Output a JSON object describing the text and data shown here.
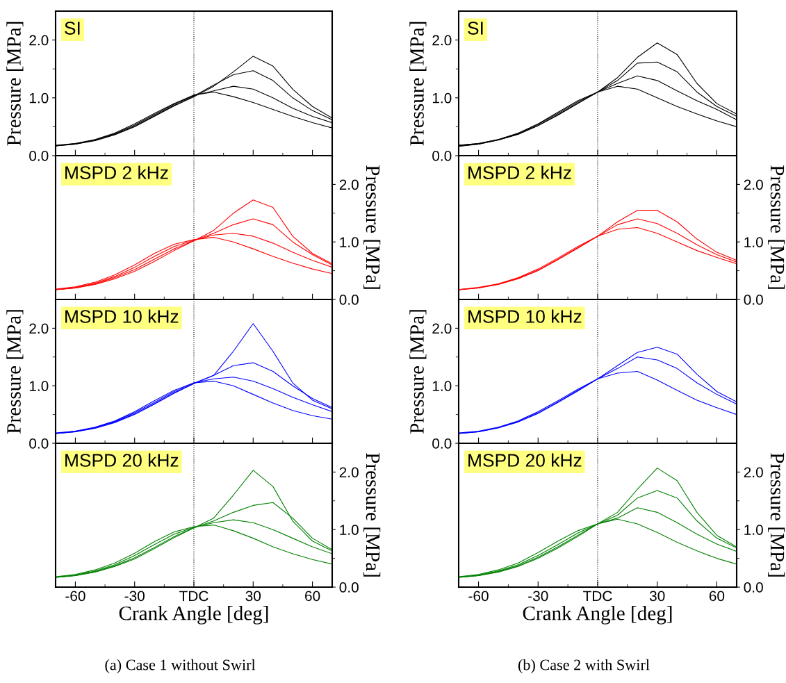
{
  "chart_data": [
    {
      "type": "line",
      "title": "SI",
      "ylabel": "Pressure [MPa]",
      "tick_labels": "y",
      "x": [
        -70,
        -60,
        -50,
        -40,
        -30,
        -20,
        -10,
        0,
        10,
        20,
        30,
        40,
        50,
        60,
        70
      ],
      "xlim": [
        -70,
        70
      ],
      "xticks": [
        {
          "value": -60,
          "label": null
        },
        {
          "value": -45,
          "label": null
        },
        {
          "value": -30,
          "label": null
        },
        {
          "value": -15,
          "label": null
        },
        {
          "value": 0,
          "label": null
        },
        {
          "value": 15,
          "label": null
        },
        {
          "value": 30,
          "label": null
        },
        {
          "value": 45,
          "label": null
        },
        {
          "value": 60,
          "label": null
        }
      ],
      "ylim": [
        0,
        2.5
      ],
      "yticks": [
        {
          "value": 0,
          "label": "0.0"
        },
        {
          "value": 0.5,
          "label": null
        },
        {
          "value": 1,
          "label": "1.0"
        },
        {
          "value": 1.5,
          "label": null
        },
        {
          "value": 2,
          "label": "2.0"
        }
      ],
      "ref_lines": [
        {
          "axis": "x",
          "value": 0,
          "color": "#000000",
          "line_style": "dotted"
        }
      ],
      "series": [
        {
          "color": "#000000",
          "values": [
            0.17,
            0.2,
            0.26,
            0.36,
            0.5,
            0.68,
            0.86,
            1.02,
            1.2,
            1.45,
            1.72,
            1.55,
            1.15,
            0.85,
            0.65
          ]
        },
        {
          "color": "#000000",
          "values": [
            0.17,
            0.2,
            0.27,
            0.37,
            0.51,
            0.69,
            0.87,
            1.03,
            1.22,
            1.4,
            1.47,
            1.3,
            1.0,
            0.78,
            0.62
          ]
        },
        {
          "color": "#000000",
          "values": [
            0.17,
            0.21,
            0.27,
            0.38,
            0.53,
            0.71,
            0.89,
            1.04,
            1.12,
            1.2,
            1.15,
            1.0,
            0.82,
            0.68,
            0.57
          ]
        },
        {
          "color": "#000000",
          "values": [
            0.18,
            0.21,
            0.28,
            0.39,
            0.55,
            0.73,
            0.9,
            1.05,
            1.1,
            1.02,
            0.92,
            0.8,
            0.68,
            0.57,
            0.48
          ]
        }
      ]
    },
    {
      "type": "line",
      "title": "MSPD 2 kHz",
      "y2label": "Pressure [MPa]",
      "tick_labels": "y",
      "x": [
        -70,
        -60,
        -50,
        -40,
        -30,
        -20,
        -10,
        0,
        10,
        20,
        30,
        40,
        50,
        60,
        70
      ],
      "xlim": [
        -70,
        70
      ],
      "xticks": [
        {
          "value": -60,
          "label": null
        },
        {
          "value": -45,
          "label": null
        },
        {
          "value": -30,
          "label": null
        },
        {
          "value": -15,
          "label": null
        },
        {
          "value": 0,
          "label": null
        },
        {
          "value": 15,
          "label": null
        },
        {
          "value": 30,
          "label": null
        },
        {
          "value": 45,
          "label": null
        },
        {
          "value": 60,
          "label": null
        }
      ],
      "y2lim": [
        0,
        2.5
      ],
      "y2ticks": [
        {
          "value": 0,
          "label": "0.0"
        },
        {
          "value": 0.5,
          "label": null
        },
        {
          "value": 1,
          "label": "1.0"
        },
        {
          "value": 1.5,
          "label": null
        },
        {
          "value": 2,
          "label": "2.0"
        }
      ],
      "ref_lines": [
        {
          "axis": "x",
          "value": 0,
          "color": "#000000",
          "line_style": "dotted"
        }
      ],
      "series": [
        {
          "axis": "y2",
          "color": "#ff0000",
          "values": [
            0.17,
            0.2,
            0.26,
            0.36,
            0.49,
            0.66,
            0.85,
            1.02,
            1.2,
            1.5,
            1.73,
            1.6,
            1.1,
            0.8,
            0.62
          ]
        },
        {
          "axis": "y2",
          "color": "#ff0000",
          "values": [
            0.17,
            0.2,
            0.27,
            0.38,
            0.52,
            0.7,
            0.88,
            1.02,
            1.15,
            1.3,
            1.4,
            1.3,
            1.0,
            0.78,
            0.6
          ]
        },
        {
          "axis": "y2",
          "color": "#ff0000",
          "values": [
            0.17,
            0.21,
            0.28,
            0.4,
            0.56,
            0.75,
            0.92,
            1.03,
            1.12,
            1.15,
            1.1,
            0.98,
            0.82,
            0.68,
            0.56
          ]
        },
        {
          "axis": "y2",
          "color": "#ff0000",
          "values": [
            0.18,
            0.22,
            0.3,
            0.43,
            0.6,
            0.8,
            0.96,
            1.04,
            1.08,
            1.0,
            0.88,
            0.75,
            0.63,
            0.53,
            0.45
          ]
        }
      ]
    },
    {
      "type": "line",
      "title": "MSPD 10 kHz",
      "ylabel": "Pressure [MPa]",
      "tick_labels": "y",
      "x": [
        -70,
        -60,
        -50,
        -40,
        -30,
        -20,
        -10,
        0,
        10,
        20,
        30,
        40,
        50,
        60,
        70
      ],
      "xlim": [
        -70,
        70
      ],
      "xticks": [
        {
          "value": -60,
          "label": null
        },
        {
          "value": -45,
          "label": null
        },
        {
          "value": -30,
          "label": null
        },
        {
          "value": -15,
          "label": null
        },
        {
          "value": 0,
          "label": null
        },
        {
          "value": 15,
          "label": null
        },
        {
          "value": 30,
          "label": null
        },
        {
          "value": 45,
          "label": null
        },
        {
          "value": 60,
          "label": null
        }
      ],
      "ylim": [
        0,
        2.5
      ],
      "yticks": [
        {
          "value": 0,
          "label": "0.0"
        },
        {
          "value": 0.5,
          "label": null
        },
        {
          "value": 1,
          "label": "1.0"
        },
        {
          "value": 1.5,
          "label": null
        },
        {
          "value": 2,
          "label": "2.0"
        }
      ],
      "ref_lines": [
        {
          "axis": "x",
          "value": 0,
          "color": "#000000",
          "line_style": "dotted"
        }
      ],
      "series": [
        {
          "color": "#0000ff",
          "values": [
            0.17,
            0.2,
            0.26,
            0.36,
            0.5,
            0.68,
            0.87,
            1.04,
            1.18,
            1.6,
            2.08,
            1.6,
            1.05,
            0.75,
            0.6
          ]
        },
        {
          "color": "#0000ff",
          "values": [
            0.17,
            0.2,
            0.27,
            0.37,
            0.51,
            0.69,
            0.88,
            1.04,
            1.18,
            1.35,
            1.4,
            1.25,
            1.0,
            0.78,
            0.62
          ]
        },
        {
          "color": "#0000ff",
          "values": [
            0.17,
            0.21,
            0.27,
            0.38,
            0.53,
            0.71,
            0.9,
            1.05,
            1.12,
            1.15,
            1.08,
            0.95,
            0.8,
            0.67,
            0.55
          ]
        },
        {
          "color": "#0000ff",
          "values": [
            0.18,
            0.21,
            0.28,
            0.39,
            0.55,
            0.74,
            0.92,
            1.05,
            1.08,
            1.0,
            0.85,
            0.7,
            0.57,
            0.48,
            0.42
          ]
        }
      ]
    },
    {
      "type": "line",
      "title": "MSPD 20 kHz",
      "xlabel": "Crank Angle [deg]",
      "y2label": "Pressure [MPa]",
      "annotations": [
        "(a) Case 1 without Swirl"
      ],
      "x": [
        -70,
        -60,
        -50,
        -40,
        -30,
        -20,
        -10,
        0,
        10,
        20,
        30,
        40,
        50,
        60,
        70
      ],
      "xlim": [
        -70,
        70
      ],
      "xticks": [
        -60,
        {
          "value": -45,
          "label": null
        },
        -30,
        {
          "value": -15,
          "label": null
        },
        {
          "value": 0,
          "label": "TDC"
        },
        {
          "value": 15,
          "label": null
        },
        30,
        {
          "value": 45,
          "label": null
        },
        60
      ],
      "y2lim": [
        0,
        2.5
      ],
      "y2ticks": [
        {
          "value": 0,
          "label": "0.0"
        },
        {
          "value": 0.5,
          "label": null
        },
        {
          "value": 1,
          "label": "1.0"
        },
        {
          "value": 1.5,
          "label": null
        },
        {
          "value": 2,
          "label": "2.0"
        }
      ],
      "ref_lines": [
        {
          "axis": "x",
          "value": 0,
          "color": "#000000",
          "line_style": "dotted"
        }
      ],
      "series": [
        {
          "axis": "y2",
          "color": "#008000",
          "values": [
            0.17,
            0.2,
            0.26,
            0.36,
            0.49,
            0.67,
            0.86,
            1.03,
            1.2,
            1.6,
            2.03,
            1.75,
            1.15,
            0.8,
            0.63
          ]
        },
        {
          "axis": "y2",
          "color": "#008000",
          "values": [
            0.17,
            0.2,
            0.27,
            0.37,
            0.51,
            0.69,
            0.88,
            1.03,
            1.15,
            1.3,
            1.42,
            1.47,
            1.2,
            0.85,
            0.65
          ]
        },
        {
          "axis": "y2",
          "color": "#008000",
          "values": [
            0.17,
            0.21,
            0.28,
            0.39,
            0.55,
            0.74,
            0.92,
            1.04,
            1.12,
            1.17,
            1.12,
            1.0,
            0.85,
            0.7,
            0.58
          ]
        },
        {
          "axis": "y2",
          "color": "#008000",
          "values": [
            0.18,
            0.22,
            0.3,
            0.42,
            0.59,
            0.79,
            0.96,
            1.05,
            1.08,
            0.98,
            0.85,
            0.7,
            0.58,
            0.48,
            0.4
          ]
        }
      ]
    },
    {
      "type": "line",
      "title": "SI",
      "ylabel": "Pressure [MPa]",
      "tick_labels": "y",
      "x": [
        -70,
        -60,
        -50,
        -40,
        -30,
        -20,
        -10,
        0,
        10,
        20,
        30,
        40,
        50,
        60,
        70
      ],
      "xlim": [
        -70,
        70
      ],
      "xticks": [
        {
          "value": -60,
          "label": null
        },
        {
          "value": -45,
          "label": null
        },
        {
          "value": -30,
          "label": null
        },
        {
          "value": -15,
          "label": null
        },
        {
          "value": 0,
          "label": null
        },
        {
          "value": 15,
          "label": null
        },
        {
          "value": 30,
          "label": null
        },
        {
          "value": 45,
          "label": null
        },
        {
          "value": 60,
          "label": null
        }
      ],
      "ylim": [
        0,
        2.5
      ],
      "yticks": [
        {
          "value": 0,
          "label": "0.0"
        },
        {
          "value": 0.5,
          "label": null
        },
        {
          "value": 1,
          "label": "1.0"
        },
        {
          "value": 1.5,
          "label": null
        },
        {
          "value": 2,
          "label": "2.0"
        }
      ],
      "ref_lines": [
        {
          "axis": "x",
          "value": 0,
          "color": "#000000",
          "line_style": "dotted"
        }
      ],
      "series": [
        {
          "color": "#000000",
          "values": [
            0.16,
            0.2,
            0.27,
            0.37,
            0.52,
            0.7,
            0.9,
            1.1,
            1.35,
            1.7,
            1.95,
            1.75,
            1.25,
            0.9,
            0.72
          ]
        },
        {
          "color": "#000000",
          "values": [
            0.17,
            0.2,
            0.27,
            0.37,
            0.52,
            0.71,
            0.91,
            1.1,
            1.3,
            1.6,
            1.62,
            1.45,
            1.1,
            0.85,
            0.68
          ]
        },
        {
          "color": "#000000",
          "values": [
            0.18,
            0.21,
            0.28,
            0.38,
            0.54,
            0.73,
            0.93,
            1.1,
            1.25,
            1.38,
            1.3,
            1.12,
            0.95,
            0.8,
            0.62
          ]
        },
        {
          "color": "#000000",
          "values": [
            0.18,
            0.21,
            0.28,
            0.39,
            0.55,
            0.75,
            0.95,
            1.1,
            1.2,
            1.15,
            1.0,
            0.85,
            0.72,
            0.6,
            0.5
          ]
        }
      ]
    },
    {
      "type": "line",
      "title": "MSPD 2 kHz",
      "y2label": "Pressure [MPa]",
      "tick_labels": "y",
      "x": [
        -70,
        -60,
        -50,
        -40,
        -30,
        -20,
        -10,
        0,
        10,
        20,
        30,
        40,
        50,
        60,
        70
      ],
      "xlim": [
        -70,
        70
      ],
      "xticks": [
        {
          "value": -60,
          "label": null
        },
        {
          "value": -45,
          "label": null
        },
        {
          "value": -30,
          "label": null
        },
        {
          "value": -15,
          "label": null
        },
        {
          "value": 0,
          "label": null
        },
        {
          "value": 15,
          "label": null
        },
        {
          "value": 30,
          "label": null
        },
        {
          "value": 45,
          "label": null
        },
        {
          "value": 60,
          "label": null
        }
      ],
      "y2lim": [
        0,
        2.5
      ],
      "y2ticks": [
        {
          "value": 0,
          "label": "0.0"
        },
        {
          "value": 0.5,
          "label": null
        },
        {
          "value": 1,
          "label": "1.0"
        },
        {
          "value": 1.5,
          "label": null
        },
        {
          "value": 2,
          "label": "2.0"
        }
      ],
      "ref_lines": [
        {
          "axis": "x",
          "value": 0,
          "color": "#000000",
          "line_style": "dotted"
        }
      ],
      "series": [
        {
          "axis": "y2",
          "color": "#ff0000",
          "values": [
            0.17,
            0.2,
            0.26,
            0.36,
            0.5,
            0.69,
            0.89,
            1.1,
            1.35,
            1.55,
            1.55,
            1.35,
            1.05,
            0.82,
            0.68
          ]
        },
        {
          "axis": "y2",
          "color": "#ff0000",
          "values": [
            0.17,
            0.2,
            0.27,
            0.37,
            0.51,
            0.7,
            0.9,
            1.1,
            1.3,
            1.4,
            1.32,
            1.15,
            0.95,
            0.78,
            0.65
          ]
        },
        {
          "axis": "y2",
          "color": "#ff0000",
          "values": [
            0.17,
            0.21,
            0.27,
            0.38,
            0.53,
            0.72,
            0.92,
            1.1,
            1.22,
            1.25,
            1.15,
            1.0,
            0.85,
            0.73,
            0.62
          ]
        }
      ]
    },
    {
      "type": "line",
      "title": "MSPD 10 kHz",
      "ylabel": "Pressure [MPa]",
      "tick_labels": "y",
      "x": [
        -70,
        -60,
        -50,
        -40,
        -30,
        -20,
        -10,
        0,
        10,
        20,
        30,
        40,
        50,
        60,
        70
      ],
      "xlim": [
        -70,
        70
      ],
      "xticks": [
        {
          "value": -60,
          "label": null
        },
        {
          "value": -45,
          "label": null
        },
        {
          "value": -30,
          "label": null
        },
        {
          "value": -15,
          "label": null
        },
        {
          "value": 0,
          "label": null
        },
        {
          "value": 15,
          "label": null
        },
        {
          "value": 30,
          "label": null
        },
        {
          "value": 45,
          "label": null
        },
        {
          "value": 60,
          "label": null
        }
      ],
      "ylim": [
        0,
        2.5
      ],
      "yticks": [
        {
          "value": 0,
          "label": "0.0"
        },
        {
          "value": 0.5,
          "label": null
        },
        {
          "value": 1,
          "label": "1.0"
        },
        {
          "value": 1.5,
          "label": null
        },
        {
          "value": 2,
          "label": "2.0"
        }
      ],
      "ref_lines": [
        {
          "axis": "x",
          "value": 0,
          "color": "#000000",
          "line_style": "dotted"
        }
      ],
      "series": [
        {
          "color": "#0000ff",
          "values": [
            0.17,
            0.2,
            0.27,
            0.37,
            0.52,
            0.71,
            0.91,
            1.12,
            1.35,
            1.58,
            1.67,
            1.55,
            1.2,
            0.9,
            0.72
          ]
        },
        {
          "color": "#0000ff",
          "values": [
            0.17,
            0.2,
            0.27,
            0.38,
            0.53,
            0.72,
            0.92,
            1.12,
            1.3,
            1.5,
            1.45,
            1.3,
            1.05,
            0.85,
            0.68
          ]
        },
        {
          "color": "#0000ff",
          "values": [
            0.18,
            0.21,
            0.28,
            0.39,
            0.55,
            0.74,
            0.94,
            1.12,
            1.22,
            1.25,
            1.1,
            0.92,
            0.75,
            0.62,
            0.5
          ]
        }
      ]
    },
    {
      "type": "line",
      "title": "MSPD 20 kHz",
      "xlabel": "Crank Angle [deg]",
      "y2label": "Pressure [MPa]",
      "annotations": [
        "(b) Case 2 with Swirl"
      ],
      "x": [
        -70,
        -60,
        -50,
        -40,
        -30,
        -20,
        -10,
        0,
        10,
        20,
        30,
        40,
        50,
        60,
        70
      ],
      "xlim": [
        -70,
        70
      ],
      "xticks": [
        -60,
        {
          "value": -45,
          "label": null
        },
        -30,
        {
          "value": -15,
          "label": null
        },
        {
          "value": 0,
          "label": "TDC"
        },
        {
          "value": 15,
          "label": null
        },
        30,
        {
          "value": 45,
          "label": null
        },
        60
      ],
      "y2lim": [
        0,
        2.5
      ],
      "y2ticks": [
        {
          "value": 0,
          "label": "0.0"
        },
        {
          "value": 0.5,
          "label": null
        },
        {
          "value": 1,
          "label": "1.0"
        },
        {
          "value": 1.5,
          "label": null
        },
        {
          "value": 2,
          "label": "2.0"
        }
      ],
      "ref_lines": [
        {
          "axis": "x",
          "value": 0,
          "color": "#000000",
          "line_style": "dotted"
        }
      ],
      "series": [
        {
          "axis": "y2",
          "color": "#008000",
          "values": [
            0.17,
            0.2,
            0.26,
            0.36,
            0.5,
            0.68,
            0.88,
            1.1,
            1.3,
            1.7,
            2.07,
            1.85,
            1.3,
            0.9,
            0.7
          ]
        },
        {
          "axis": "y2",
          "color": "#008000",
          "values": [
            0.17,
            0.2,
            0.27,
            0.37,
            0.52,
            0.7,
            0.9,
            1.1,
            1.25,
            1.55,
            1.68,
            1.55,
            1.15,
            0.85,
            0.68
          ]
        },
        {
          "axis": "y2",
          "color": "#008000",
          "values": [
            0.17,
            0.21,
            0.28,
            0.39,
            0.55,
            0.74,
            0.94,
            1.1,
            1.2,
            1.38,
            1.3,
            1.12,
            0.92,
            0.75,
            0.62
          ]
        },
        {
          "axis": "y2",
          "color": "#008000",
          "values": [
            0.18,
            0.22,
            0.3,
            0.42,
            0.6,
            0.8,
            0.98,
            1.1,
            1.18,
            1.1,
            0.95,
            0.78,
            0.63,
            0.5,
            0.4
          ]
        }
      ]
    }
  ]
}
